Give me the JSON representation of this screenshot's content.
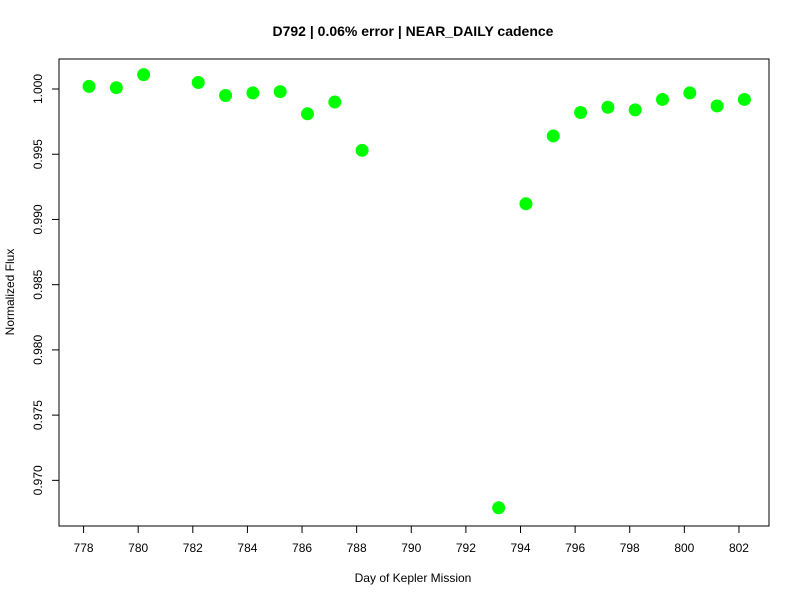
{
  "chart_data": {
    "type": "scatter",
    "title": "D792 | 0.06% error | NEAR_DAILY cadence",
    "xlabel": "Day of Kepler Mission",
    "ylabel": "Normalized Flux",
    "xlim": [
      777.1,
      803.1
    ],
    "ylim": [
      0.9665,
      1.0023
    ],
    "x_ticks": [
      778,
      780,
      782,
      784,
      786,
      788,
      790,
      792,
      794,
      796,
      798,
      800,
      802
    ],
    "y_ticks": [
      0.97,
      0.975,
      0.98,
      0.985,
      0.99,
      0.995,
      1.0
    ],
    "x_tick_labels": [
      "778",
      "780",
      "782",
      "784",
      "786",
      "788",
      "790",
      "792",
      "794",
      "796",
      "798",
      "800",
      "802"
    ],
    "y_tick_labels": [
      "0.970",
      "0.975",
      "0.980",
      "0.985",
      "0.990",
      "0.995",
      "1.000"
    ],
    "grid": false,
    "marker_color": "#00ff00",
    "series": [
      {
        "x": [
          778.2,
          779.2,
          780.2,
          782.2,
          783.2,
          784.2,
          785.2,
          786.2,
          787.2,
          788.2,
          793.2,
          794.2,
          795.2,
          796.2,
          797.2,
          798.2,
          799.2,
          800.2,
          801.2,
          802.2
        ],
        "y": [
          1.0002,
          1.0001,
          1.0011,
          1.0005,
          0.9995,
          0.9997,
          0.9998,
          0.9981,
          0.999,
          0.9953,
          0.9679,
          0.9912,
          0.9964,
          0.9982,
          0.9986,
          0.9984,
          0.9992,
          0.9997,
          0.9987,
          0.9992
        ]
      }
    ]
  }
}
